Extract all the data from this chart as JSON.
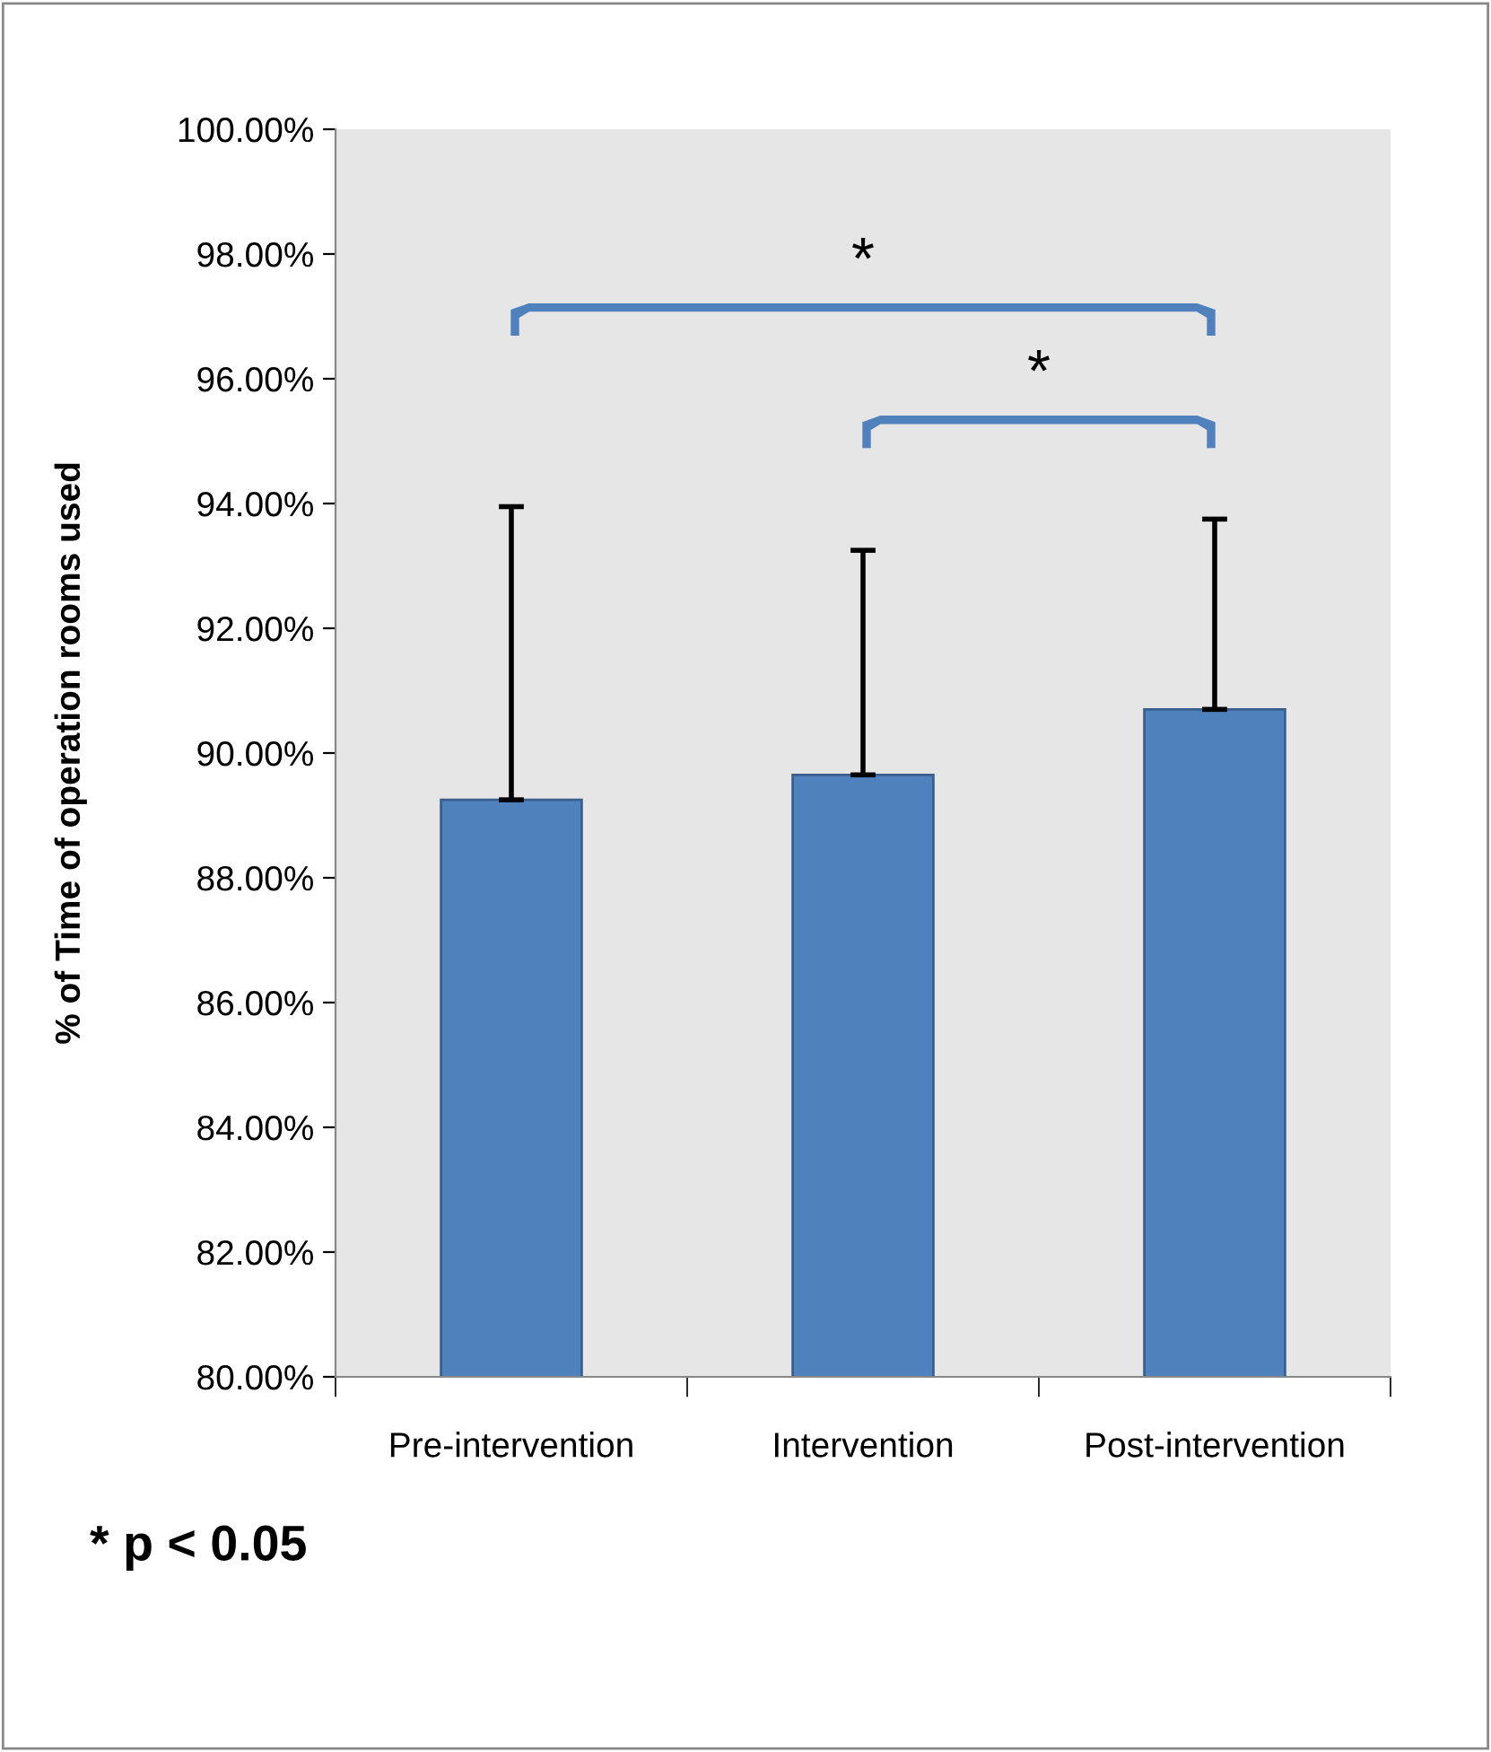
{
  "chart_data": {
    "type": "bar",
    "ylabel": "% of Time of operation rooms used",
    "categories": [
      "Pre-intervention",
      "Intervention",
      "Post-intervention"
    ],
    "values": [
      89.25,
      89.65,
      90.7
    ],
    "errors": [
      [
        89.25,
        93.95
      ],
      [
        89.65,
        93.25
      ],
      [
        90.7,
        93.75
      ]
    ],
    "color": "#4f81bd",
    "ylim": [
      80,
      100
    ],
    "yticks": [
      {
        "value": 80,
        "label": "80.00%"
      },
      {
        "value": 82,
        "label": "82.00%"
      },
      {
        "value": 84,
        "label": "84.00%"
      },
      {
        "value": 86,
        "label": "86.00%"
      },
      {
        "value": 88,
        "label": "88.00%"
      },
      {
        "value": 90,
        "label": "90.00%"
      },
      {
        "value": 92,
        "label": "92.00%"
      },
      {
        "value": 94,
        "label": "94.00%"
      },
      {
        "value": 96,
        "label": "96.00%"
      },
      {
        "value": 98,
        "label": "98.00%"
      },
      {
        "value": 100,
        "label": "100.00%"
      }
    ],
    "grid": false,
    "annotations": [
      "*",
      "*",
      "* p < 0.05"
    ]
  }
}
